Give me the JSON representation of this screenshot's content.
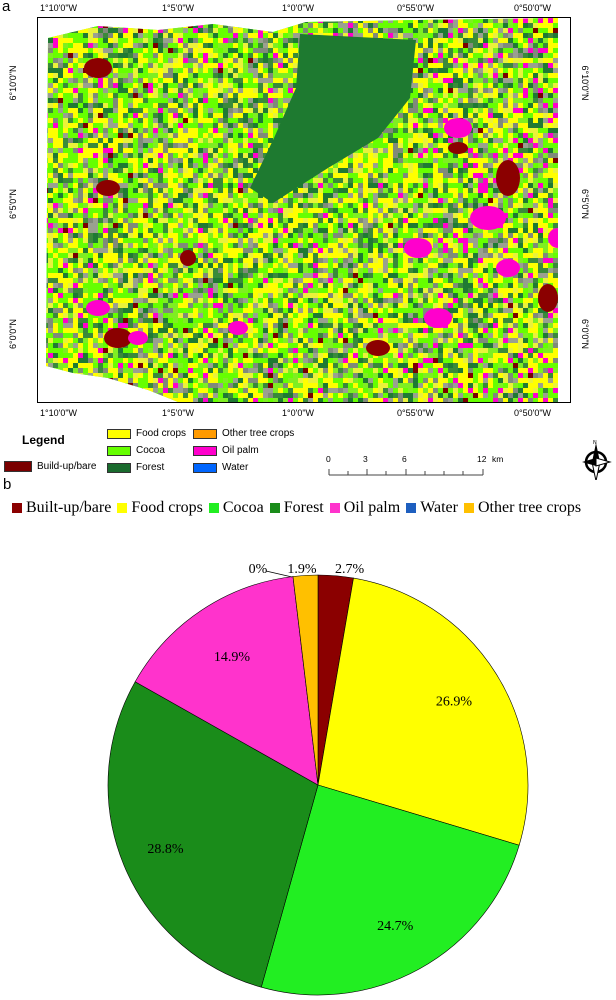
{
  "panels": {
    "a": "a",
    "b": "b"
  },
  "map": {
    "top_ticks": [
      "1°10'0\"W",
      "1°5'0\"W",
      "1°0'0\"W",
      "0°55'0\"W",
      "0°50'0\"W"
    ],
    "bottom_ticks": [
      "1°10'0\"W",
      "1°5'0\"W",
      "1°0'0\"W",
      "0°55'0\"W",
      "0°50'0\"W"
    ],
    "left_ticks": [
      "6°10'0\"N",
      "6°5'0\"N",
      "6°0'0\"N"
    ],
    "right_ticks": [
      "6°10'0\"N",
      "6°5'0\"N",
      "6°0'0\"N"
    ],
    "legend": {
      "title": "Legend",
      "items": [
        {
          "label": "Build-up/bare",
          "color": "#7a0000"
        },
        {
          "label": "Food crops",
          "color": "#ffff00"
        },
        {
          "label": "Cocoa",
          "color": "#66ff00"
        },
        {
          "label": "Forest",
          "color": "#1a6b2e"
        },
        {
          "label": "Other tree crops",
          "color": "#ff9a00"
        },
        {
          "label": "Oil palm",
          "color": "#ff00cc"
        },
        {
          "label": "Water",
          "color": "#0066ff"
        }
      ]
    },
    "scale_bar": {
      "labels": [
        "0",
        "3",
        "6",
        "12"
      ],
      "unit": "km"
    },
    "north_arrow_icon": "north-arrow-icon"
  },
  "chart_data": {
    "type": "pie",
    "title": "",
    "legend_position": "top",
    "categories": [
      "Built-up/bare",
      "Food crops",
      "Cocoa",
      "Forest",
      "Oil palm",
      "Water",
      "Other tree crops"
    ],
    "values": [
      2.7,
      26.9,
      24.7,
      28.8,
      14.9,
      0,
      1.9
    ],
    "labels": [
      "2.7%",
      "26.9%",
      "24.7%",
      "28.8%",
      "14.9%",
      "0%",
      "1.9%"
    ],
    "colors": [
      "#8b0000",
      "#ffff00",
      "#22ee22",
      "#1a8c1a",
      "#ff33cc",
      "#1e5fbf",
      "#ffc000"
    ]
  }
}
